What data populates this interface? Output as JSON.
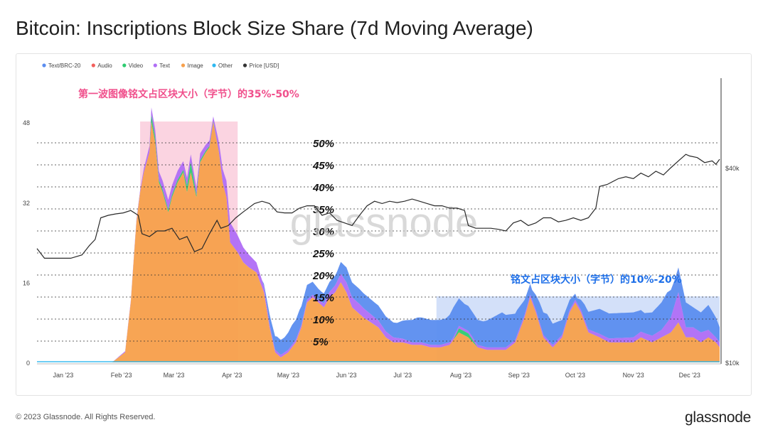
{
  "page": {
    "title": "Bitcoin: Inscriptions Block Size Share (7d Moving Average)",
    "footer": "© 2023 Glassnode. All Rights Reserved.",
    "brand": "glassnode",
    "watermark": "glassnode"
  },
  "chart_data": {
    "type": "area",
    "stacked": true,
    "legend": [
      {
        "name": "Text/BRC-20",
        "color": "#5b8def"
      },
      {
        "name": "Audio",
        "color": "#f25f5c"
      },
      {
        "name": "Video",
        "color": "#2ecc71"
      },
      {
        "name": "Text",
        "color": "#b06ef5"
      },
      {
        "name": "Image",
        "color": "#f7a04b"
      },
      {
        "name": "Other",
        "color": "#2eb8f0"
      },
      {
        "name": "Price [USD]",
        "color": "#333333"
      }
    ],
    "legend_position": "top-left",
    "x_ticks": [
      "Jan '23",
      "Feb '23",
      "Mar '23",
      "Apr '23",
      "May '23",
      "Jun '23",
      "Jul '23",
      "Aug '23",
      "Sep '23",
      "Oct '23",
      "Nov '23",
      "Dec '23"
    ],
    "y_left_ticks": [
      "0",
      "16",
      "32",
      "48"
    ],
    "y_left_range": [
      0,
      54
    ],
    "y_right_ticks": [
      "$10k",
      "$40k"
    ],
    "y_right_range": [
      10000,
      48000
    ],
    "y_right_scale": "log",
    "pct_guides": [
      "5%",
      "10%",
      "15%",
      "20%",
      "25%",
      "30%",
      "35%",
      "40%",
      "45%",
      "50%"
    ],
    "x_range_days": [
      0,
      364
    ],
    "image_series": [
      [
        0,
        0
      ],
      [
        40,
        0
      ],
      [
        47,
        2
      ],
      [
        50,
        12
      ],
      [
        53,
        28
      ],
      [
        55,
        34
      ],
      [
        57,
        38
      ],
      [
        60,
        42
      ],
      [
        61,
        48
      ],
      [
        63,
        44
      ],
      [
        65,
        36
      ],
      [
        67,
        34
      ],
      [
        70,
        30
      ],
      [
        72,
        33
      ],
      [
        75,
        36
      ],
      [
        78,
        38
      ],
      [
        80,
        34
      ],
      [
        82,
        38
      ],
      [
        85,
        33
      ],
      [
        87,
        40
      ],
      [
        90,
        42
      ],
      [
        92,
        43
      ],
      [
        94,
        48
      ],
      [
        97,
        42
      ],
      [
        99,
        36
      ],
      [
        101,
        33
      ],
      [
        103,
        24
      ],
      [
        107,
        22
      ],
      [
        110,
        20
      ],
      [
        113,
        19
      ],
      [
        117,
        18
      ],
      [
        121,
        14
      ],
      [
        124,
        7
      ],
      [
        127,
        2
      ],
      [
        130,
        1
      ],
      [
        134,
        2
      ],
      [
        138,
        4
      ],
      [
        141,
        7
      ],
      [
        144,
        12
      ],
      [
        147,
        13
      ],
      [
        150,
        12
      ],
      [
        153,
        11
      ],
      [
        156,
        13
      ],
      [
        159,
        14
      ],
      [
        162,
        16
      ],
      [
        165,
        14
      ],
      [
        168,
        11
      ],
      [
        171,
        10
      ],
      [
        174,
        9
      ],
      [
        178,
        8
      ],
      [
        182,
        7
      ],
      [
        186,
        5
      ],
      [
        190,
        4
      ],
      [
        195,
        4
      ],
      [
        200,
        3.5
      ],
      [
        205,
        3.5
      ],
      [
        210,
        3
      ],
      [
        215,
        3
      ],
      [
        220,
        3.5
      ],
      [
        225,
        6
      ],
      [
        230,
        5
      ],
      [
        235,
        3
      ],
      [
        240,
        2.5
      ],
      [
        245,
        2.5
      ],
      [
        250,
        2.5
      ],
      [
        255,
        4
      ],
      [
        260,
        9
      ],
      [
        263,
        13
      ],
      [
        266,
        10
      ],
      [
        270,
        5
      ],
      [
        275,
        3
      ],
      [
        280,
        5
      ],
      [
        284,
        10
      ],
      [
        287,
        12
      ],
      [
        290,
        10
      ],
      [
        294,
        6
      ],
      [
        300,
        5
      ],
      [
        305,
        4
      ],
      [
        312,
        4
      ],
      [
        318,
        4
      ],
      [
        322,
        5
      ],
      [
        328,
        4
      ],
      [
        333,
        5
      ],
      [
        338,
        6
      ],
      [
        342,
        8
      ],
      [
        346,
        5
      ],
      [
        350,
        5
      ],
      [
        354,
        4
      ],
      [
        358,
        5
      ],
      [
        362,
        4
      ],
      [
        364,
        3
      ]
    ],
    "text_series": [
      [
        0,
        0
      ],
      [
        40,
        0
      ],
      [
        55,
        0.5
      ],
      [
        61,
        1.5
      ],
      [
        70,
        2
      ],
      [
        85,
        1.5
      ],
      [
        94,
        1
      ],
      [
        103,
        4
      ],
      [
        110,
        3
      ],
      [
        117,
        2
      ],
      [
        125,
        0.5
      ],
      [
        150,
        0.5
      ],
      [
        160,
        1.5
      ],
      [
        165,
        2
      ],
      [
        172,
        2
      ],
      [
        180,
        1.5
      ],
      [
        200,
        0.5
      ],
      [
        225,
        0.5
      ],
      [
        255,
        0.5
      ],
      [
        263,
        0.5
      ],
      [
        287,
        0.5
      ],
      [
        318,
        1
      ],
      [
        333,
        1.5
      ],
      [
        338,
        3
      ],
      [
        342,
        6
      ],
      [
        346,
        2
      ],
      [
        354,
        2
      ],
      [
        362,
        1
      ],
      [
        364,
        1
      ]
    ],
    "video_series": [
      [
        0,
        0
      ],
      [
        60,
        0
      ],
      [
        61,
        1.5
      ],
      [
        65,
        0.5
      ],
      [
        78,
        0.5
      ],
      [
        82,
        2
      ],
      [
        85,
        0.5
      ],
      [
        100,
        0
      ],
      [
        222,
        0
      ],
      [
        225,
        0.8
      ],
      [
        230,
        0.8
      ],
      [
        235,
        0
      ],
      [
        364,
        0
      ]
    ],
    "brc20_series": [
      [
        0,
        0
      ],
      [
        120,
        0
      ],
      [
        124,
        2
      ],
      [
        128,
        3
      ],
      [
        132,
        3
      ],
      [
        136,
        4
      ],
      [
        140,
        4
      ],
      [
        144,
        3
      ],
      [
        148,
        2.5
      ],
      [
        152,
        2
      ],
      [
        156,
        2
      ],
      [
        160,
        2
      ],
      [
        165,
        3
      ],
      [
        170,
        3
      ],
      [
        175,
        3
      ],
      [
        180,
        3
      ],
      [
        184,
        3
      ],
      [
        188,
        3
      ],
      [
        192,
        3
      ],
      [
        197,
        4
      ],
      [
        203,
        5
      ],
      [
        208,
        5
      ],
      [
        212,
        5
      ],
      [
        218,
        5
      ],
      [
        222,
        6
      ],
      [
        228,
        5
      ],
      [
        233,
        5
      ],
      [
        238,
        5
      ],
      [
        243,
        6
      ],
      [
        248,
        7
      ],
      [
        252,
        6
      ],
      [
        256,
        5
      ],
      [
        260,
        3
      ],
      [
        264,
        2
      ],
      [
        268,
        4
      ],
      [
        272,
        5
      ],
      [
        276,
        4
      ],
      [
        280,
        3
      ],
      [
        284,
        2
      ],
      [
        288,
        1
      ],
      [
        292,
        3
      ],
      [
        296,
        4
      ],
      [
        300,
        5
      ],
      [
        306,
        5
      ],
      [
        312,
        5
      ],
      [
        318,
        5
      ],
      [
        324,
        4
      ],
      [
        330,
        5
      ],
      [
        336,
        6
      ],
      [
        340,
        5
      ],
      [
        346,
        5
      ],
      [
        350,
        4
      ],
      [
        354,
        4
      ],
      [
        358,
        5
      ],
      [
        362,
        4
      ],
      [
        364,
        3
      ]
    ],
    "price_series": [
      [
        0,
        22500
      ],
      [
        4,
        21000
      ],
      [
        10,
        21000
      ],
      [
        18,
        21000
      ],
      [
        24,
        21500
      ],
      [
        28,
        23000
      ],
      [
        31,
        24000
      ],
      [
        34,
        28000
      ],
      [
        38,
        28500
      ],
      [
        42,
        28800
      ],
      [
        46,
        29000
      ],
      [
        50,
        29500
      ],
      [
        54,
        28500
      ],
      [
        56,
        25000
      ],
      [
        60,
        24500
      ],
      [
        64,
        25500
      ],
      [
        68,
        25500
      ],
      [
        72,
        26000
      ],
      [
        76,
        24000
      ],
      [
        80,
        24500
      ],
      [
        84,
        22000
      ],
      [
        88,
        22500
      ],
      [
        92,
        25000
      ],
      [
        96,
        27500
      ],
      [
        98,
        26000
      ],
      [
        102,
        26500
      ],
      [
        106,
        28000
      ],
      [
        110,
        29200
      ],
      [
        116,
        31000
      ],
      [
        120,
        31500
      ],
      [
        124,
        31000
      ],
      [
        128,
        29200
      ],
      [
        132,
        29000
      ],
      [
        136,
        29000
      ],
      [
        140,
        30000
      ],
      [
        144,
        30500
      ],
      [
        148,
        30500
      ],
      [
        152,
        28500
      ],
      [
        156,
        29000
      ],
      [
        160,
        27500
      ],
      [
        164,
        27000
      ],
      [
        168,
        26500
      ],
      [
        172,
        28500
      ],
      [
        176,
        30500
      ],
      [
        180,
        31500
      ],
      [
        184,
        31000
      ],
      [
        188,
        31500
      ],
      [
        192,
        31200
      ],
      [
        196,
        31500
      ],
      [
        200,
        32000
      ],
      [
        204,
        31500
      ],
      [
        208,
        31000
      ],
      [
        212,
        30500
      ],
      [
        216,
        30500
      ],
      [
        220,
        30000
      ],
      [
        224,
        30000
      ],
      [
        228,
        29500
      ],
      [
        230,
        26500
      ],
      [
        234,
        26000
      ],
      [
        238,
        26000
      ],
      [
        242,
        26000
      ],
      [
        246,
        25800
      ],
      [
        250,
        25500
      ],
      [
        254,
        27000
      ],
      [
        258,
        27500
      ],
      [
        262,
        26500
      ],
      [
        266,
        27000
      ],
      [
        270,
        28000
      ],
      [
        274,
        28000
      ],
      [
        278,
        27200
      ],
      [
        282,
        27500
      ],
      [
        286,
        28000
      ],
      [
        290,
        27500
      ],
      [
        294,
        28000
      ],
      [
        298,
        30000
      ],
      [
        300,
        35000
      ],
      [
        304,
        35500
      ],
      [
        310,
        37000
      ],
      [
        314,
        37500
      ],
      [
        318,
        37000
      ],
      [
        322,
        38500
      ],
      [
        326,
        37500
      ],
      [
        330,
        39000
      ],
      [
        334,
        38000
      ],
      [
        338,
        40000
      ],
      [
        342,
        42000
      ],
      [
        346,
        44000
      ],
      [
        348,
        43500
      ],
      [
        352,
        43000
      ],
      [
        356,
        41500
      ],
      [
        360,
        42000
      ],
      [
        362,
        41000
      ],
      [
        364,
        42500
      ]
    ]
  },
  "annotations": {
    "first_wave": "第一波图像铭文占区块大小（字节）的35%-50%",
    "later": "铭文占区块大小（字节）的10%-20%",
    "first_wave_color": "#f0508c",
    "later_color": "#1e6fe8",
    "first_wave_box_color": "#f9c6d7",
    "later_box_color": "#c8d8f7"
  }
}
